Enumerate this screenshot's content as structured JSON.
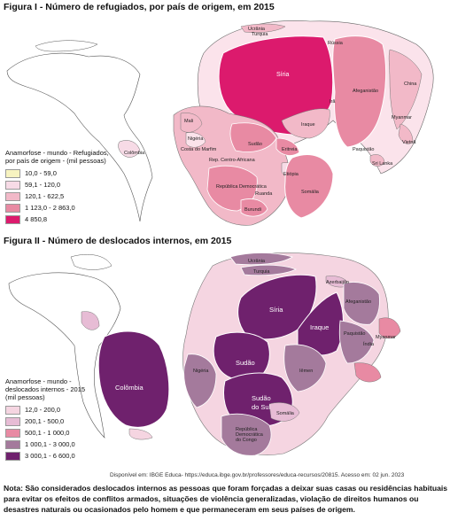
{
  "figure1": {
    "title": "Figura I - Número de refugiados, por país de origem, em 2015",
    "legend": {
      "title_line1": "Anamorfose - mundo - Refugiados,",
      "title_line2": "por país de origem - (mil pessoas)",
      "items": [
        {
          "label": "10,0 - 59,0",
          "color": "#f7f3c0"
        },
        {
          "label": "59,1 - 120,0",
          "color": "#f7dbe6"
        },
        {
          "label": "120,1 - 622,5",
          "color": "#f2b9c8"
        },
        {
          "label": "1 123,0 - 2 863,0",
          "color": "#e88aa3"
        },
        {
          "label": "4 850,8",
          "color": "#dc1a6d"
        }
      ]
    },
    "labels": {
      "ucrania": "Ucrânia",
      "turquia": "Turquia",
      "siria": "Síria",
      "russia": "Rússia",
      "china": "China",
      "afeganistao": "Afeganistão",
      "iraque": "Iraque",
      "iran": "Irã",
      "paquistao": "Paquistão",
      "myanmar": "Myanmar",
      "vietna": "Vietnã",
      "sri_lanka": "Sri Lanka",
      "mali": "Mali",
      "nigeria": "Nigéria",
      "costa_marfim": "Costa do Marfim",
      "rep_centro_africana": "Rep. Centro-Africana",
      "sudao": "Sudão",
      "eritreia": "Eritreia",
      "etiopia": "Etiópia",
      "somalia": "Somália",
      "rep_democratica": "República Democrática",
      "ruanda": "Ruanda",
      "burundi": "Burundi",
      "colombia": "Colômbia"
    }
  },
  "figure2": {
    "title": "Figura II - Número de deslocados internos, em 2015",
    "legend": {
      "title_line1": "Anamorfose - mundo -",
      "title_line2": "deslocados internos - 2015",
      "title_line3": "(mil pessoas)",
      "items": [
        {
          "label": "12,0 - 200,0",
          "color": "#f5d5e1"
        },
        {
          "label": "200,1 - 500,0",
          "color": "#e7bcd5"
        },
        {
          "label": "500,1 - 1 000,0",
          "color": "#e88aa3"
        },
        {
          "label": "1 000,1 - 3 000,0",
          "color": "#a47a9c"
        },
        {
          "label": "3 000,1 - 6 600,0",
          "color": "#6f216d"
        }
      ]
    },
    "labels": {
      "ucrania": "Ucrânia",
      "turquia": "Turquia",
      "azerbaijao": "Azerbaijão",
      "siria": "Síria",
      "iraque": "Iraque",
      "afeganistao": "Afeganistão",
      "paquistao": "Paquistão",
      "myanmar": "Myanmar",
      "india": "Índia",
      "nigeria": "Nigéria",
      "sudao": "Sudão",
      "sudao_sul_1": "Sudão",
      "sudao_sul_2": "do Sul",
      "iemen": "Iêmen",
      "somalia": "Somália",
      "rep_1": "República",
      "rep_2": "Democrática",
      "rep_3": "do Congo",
      "colombia": "Colômbia"
    }
  },
  "source": "Disponível em: IBGE Educa- https://educa.ibge.gov.br/professores/educa-recursos/20815. Acesso em: 02 jun. 2023",
  "note": "Nota: São considerados deslocados internos as pessoas que foram forçadas a deixar suas casas ou residências habituais para evitar os efeitos de conflitos armados, situações de violência generalizadas, violação de direitos humanos ou desastres naturais ou ocasionados pelo homem e que permaneceram em seus países de origem."
}
